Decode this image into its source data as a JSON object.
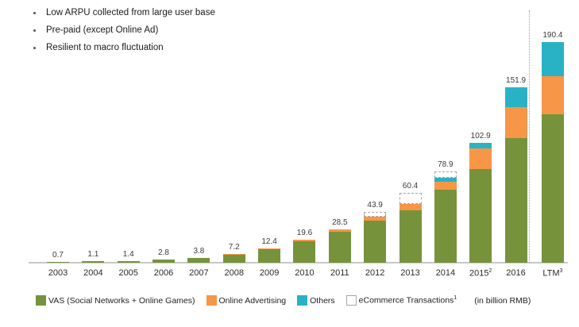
{
  "intro": {
    "bullets": [
      "Low ARPU collected from large user base",
      "Pre-paid (except Online Ad)",
      "Resilient to macro fluctuation"
    ]
  },
  "chart_data": {
    "type": "bar",
    "stacked": true,
    "title": "",
    "xlabel": "",
    "ylabel": "",
    "unit_note": "(in billion RMB)",
    "ylim": [
      0,
      200
    ],
    "grid": false,
    "legend_position": "bottom",
    "axis_color": "#c8c8c8",
    "separator_before_last_category": true,
    "categories": [
      {
        "label": "2003",
        "sup": ""
      },
      {
        "label": "2004",
        "sup": ""
      },
      {
        "label": "2005",
        "sup": ""
      },
      {
        "label": "2006",
        "sup": ""
      },
      {
        "label": "2007",
        "sup": ""
      },
      {
        "label": "2008",
        "sup": ""
      },
      {
        "label": "2009",
        "sup": ""
      },
      {
        "label": "2010",
        "sup": ""
      },
      {
        "label": "2011",
        "sup": ""
      },
      {
        "label": "2012",
        "sup": ""
      },
      {
        "label": "2013",
        "sup": ""
      },
      {
        "label": "2014",
        "sup": ""
      },
      {
        "label": "2015",
        "sup": "2"
      },
      {
        "label": "2016",
        "sup": ""
      },
      {
        "label": "LTM",
        "sup": "3"
      }
    ],
    "total_labels": [
      "0.7",
      "1.1",
      "1.4",
      "2.8",
      "3.8",
      "7.2",
      "12.4",
      "19.6",
      "28.5",
      "43.9",
      "60.4",
      "78.9",
      "102.9",
      "151.9",
      "190.4"
    ],
    "totals": [
      0.7,
      1.1,
      1.4,
      2.8,
      3.8,
      7.2,
      12.4,
      19.6,
      28.5,
      43.9,
      60.4,
      78.9,
      102.9,
      151.9,
      190.4
    ],
    "series": [
      {
        "name": "VAS (Social Networks + Online Games)",
        "sup": "",
        "color": "#76933C",
        "style": "solid",
        "values": [
          0.7,
          1.1,
          1.4,
          2.8,
          3.8,
          7.0,
          11.7,
          18.2,
          26.5,
          36.1,
          45.0,
          63.3,
          80.7,
          107.8,
          128.0
        ]
      },
      {
        "name": "Online Advertising",
        "sup": "",
        "color": "#F79646",
        "style": "solid",
        "values": [
          0,
          0,
          0,
          0,
          0,
          0.2,
          0.7,
          1.4,
          2.0,
          3.4,
          5.6,
          7.0,
          17.5,
          27.0,
          33.0
        ]
      },
      {
        "name": "Others",
        "sup": "",
        "color": "#29B2C6",
        "style": "solid",
        "values": [
          0,
          0,
          0,
          0,
          0,
          0,
          0,
          0,
          0,
          0,
          0,
          3.4,
          4.7,
          17.1,
          29.4
        ]
      },
      {
        "name": "eCommerce Transactions",
        "sup": "1",
        "color": "#FFFFFF",
        "border_color": "#A6A6A6",
        "style": "dashed",
        "values": [
          0,
          0,
          0,
          0,
          0,
          0,
          0,
          0,
          0,
          4.4,
          9.8,
          5.2,
          0,
          0,
          0
        ]
      }
    ]
  }
}
